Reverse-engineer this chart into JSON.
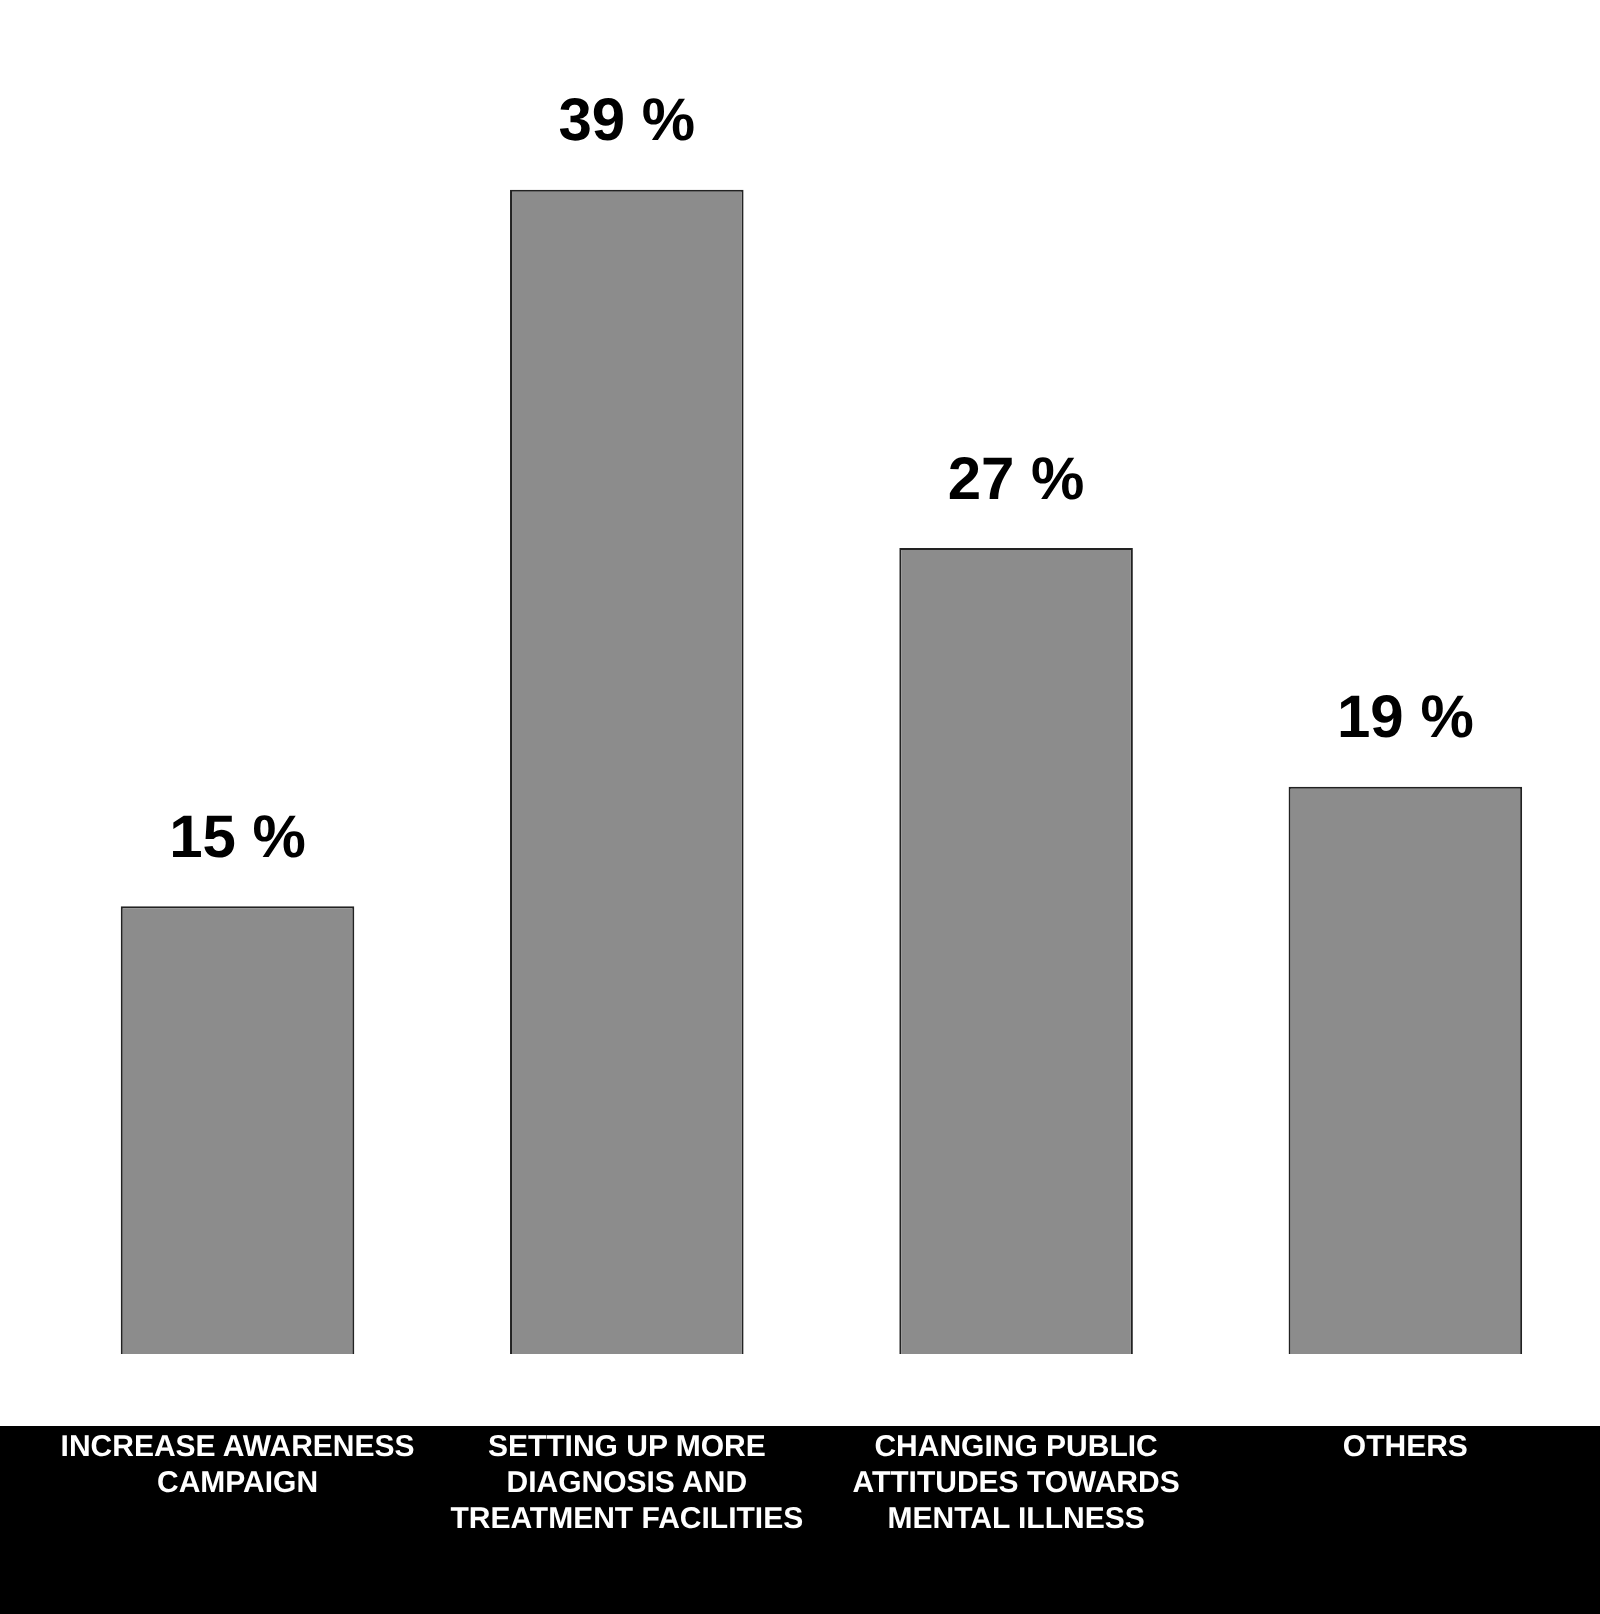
{
  "chart_data": {
    "type": "bar",
    "categories": [
      "INCREASE AWARENESS CAMPAIGN",
      "SETTING UP MORE DIAGNOSIS AND TREATMENT FACILITIES",
      "CHANGING PUBLIC ATTITUDES TOWARDS MENTAL ILLNESS",
      "OTHERS"
    ],
    "values": [
      15,
      39,
      27,
      19
    ],
    "color": "#8c8c8c",
    "value_labels": [
      "15 %",
      "39 %",
      "27 %",
      "19 %"
    ],
    "grid": false,
    "legend": false
  }
}
